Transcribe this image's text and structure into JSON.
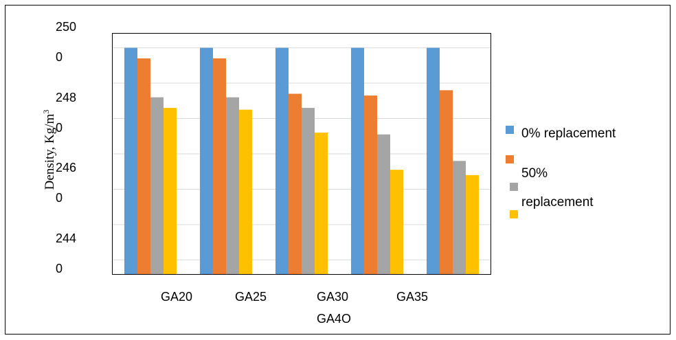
{
  "chart_data": {
    "type": "bar",
    "title": "",
    "xlabel": "",
    "ylabel": "Density, Kg/m",
    "ylabel_superscript": "3",
    "ylim": [
      2436,
      2504
    ],
    "y_tick_labels": [
      {
        "value": 2500,
        "lines": [
          "250",
          "0"
        ]
      },
      {
        "value": 2480,
        "lines": [
          "248",
          "0"
        ]
      },
      {
        "value": 2460,
        "lines": [
          "246",
          "0"
        ]
      },
      {
        "value": 2440,
        "lines": [
          "244",
          "0"
        ]
      }
    ],
    "grid": true,
    "categories": [
      "GA20",
      "GA25",
      "GA30",
      "GA35",
      "GA4O"
    ],
    "x_tick_lines": [
      [
        "GA20",
        "GA25",
        "GA30",
        "GA35"
      ],
      [
        "GA4O"
      ]
    ],
    "series": [
      {
        "name": "0% replacement",
        "color": "#5B9BD5",
        "values": [
          2500,
          2500,
          2500,
          2500,
          2500
        ]
      },
      {
        "color": "#ED7D31",
        "values": [
          2497,
          2497,
          2487,
          2486.5,
          2488
        ]
      },
      {
        "color": "#A5A5A5",
        "values": [
          2486,
          2486,
          2483,
          2475.5,
          2468
        ]
      },
      {
        "color": "#FFC000",
        "values": [
          2483,
          2482.5,
          2476,
          2465.5,
          2464
        ]
      }
    ],
    "legend_position": "right",
    "legend_lines": [
      "0% replacement",
      "50%",
      "replacement"
    ]
  }
}
